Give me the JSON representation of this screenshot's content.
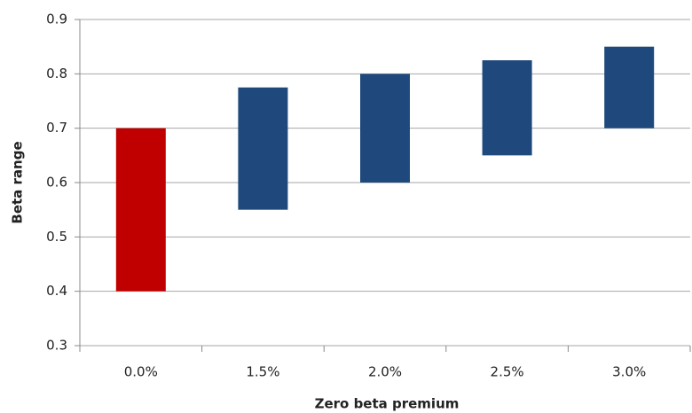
{
  "chart_data": {
    "type": "floating-bar",
    "x_label": "Zero beta premium",
    "y_label": "Beta range",
    "categories": [
      "0.0%",
      "1.5%",
      "2.0%",
      "2.5%",
      "3.0%"
    ],
    "low": [
      0.4,
      0.55,
      0.6,
      0.65,
      0.7
    ],
    "high": [
      0.7,
      0.775,
      0.8,
      0.825,
      0.85
    ],
    "colors": [
      "#c00000",
      "#1f497d",
      "#1f497d",
      "#1f497d",
      "#1f497d"
    ],
    "ylim": [
      0.3,
      0.9
    ],
    "yticks": [
      0.3,
      0.4,
      0.5,
      0.6,
      0.7,
      0.8,
      0.9
    ],
    "grid": true
  }
}
